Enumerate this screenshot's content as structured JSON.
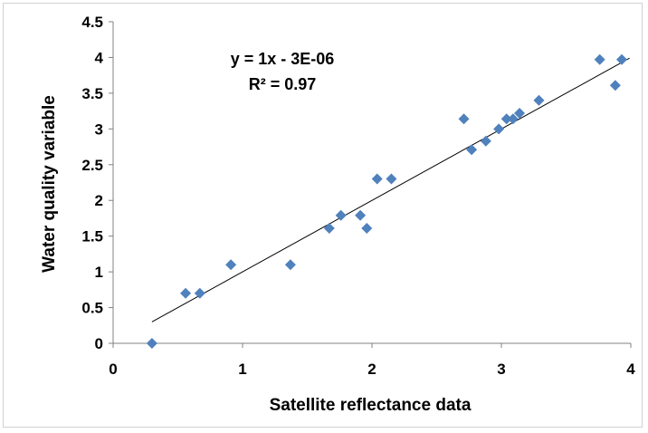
{
  "chart_data": {
    "type": "scatter",
    "title": "",
    "xlabel": "Satellite reflectance data",
    "ylabel": "Water quality variable",
    "xlim": [
      0,
      4
    ],
    "ylim": [
      0,
      4.5
    ],
    "x_ticks": [
      "0",
      "1",
      "2",
      "3",
      "4"
    ],
    "y_ticks": [
      "0",
      "0.5",
      "1",
      "1.5",
      "2",
      "2.5",
      "3",
      "3.5",
      "4",
      "4.5"
    ],
    "grid": false,
    "legend": "none",
    "marker_color": "#4f81bd",
    "trendline": {
      "equation": "y = 1x - 3E-06",
      "r_squared": "R² = 0.97",
      "slope": 1,
      "intercept": -3e-06,
      "x_range": [
        0.3,
        3.99
      ]
    },
    "points": [
      {
        "x": 0.3,
        "y": 0.0
      },
      {
        "x": 0.56,
        "y": 0.7
      },
      {
        "x": 0.67,
        "y": 0.7
      },
      {
        "x": 0.91,
        "y": 1.1
      },
      {
        "x": 1.37,
        "y": 1.1
      },
      {
        "x": 1.67,
        "y": 1.61
      },
      {
        "x": 1.76,
        "y": 1.79
      },
      {
        "x": 1.91,
        "y": 1.79
      },
      {
        "x": 1.96,
        "y": 1.61
      },
      {
        "x": 2.04,
        "y": 2.3
      },
      {
        "x": 2.15,
        "y": 2.3
      },
      {
        "x": 2.71,
        "y": 3.14
      },
      {
        "x": 2.77,
        "y": 2.71
      },
      {
        "x": 2.88,
        "y": 2.83
      },
      {
        "x": 2.98,
        "y": 3.0
      },
      {
        "x": 3.04,
        "y": 3.14
      },
      {
        "x": 3.09,
        "y": 3.14
      },
      {
        "x": 3.14,
        "y": 3.22
      },
      {
        "x": 3.29,
        "y": 3.4
      },
      {
        "x": 3.76,
        "y": 3.97
      },
      {
        "x": 3.88,
        "y": 3.61
      },
      {
        "x": 3.93,
        "y": 3.97
      }
    ]
  }
}
